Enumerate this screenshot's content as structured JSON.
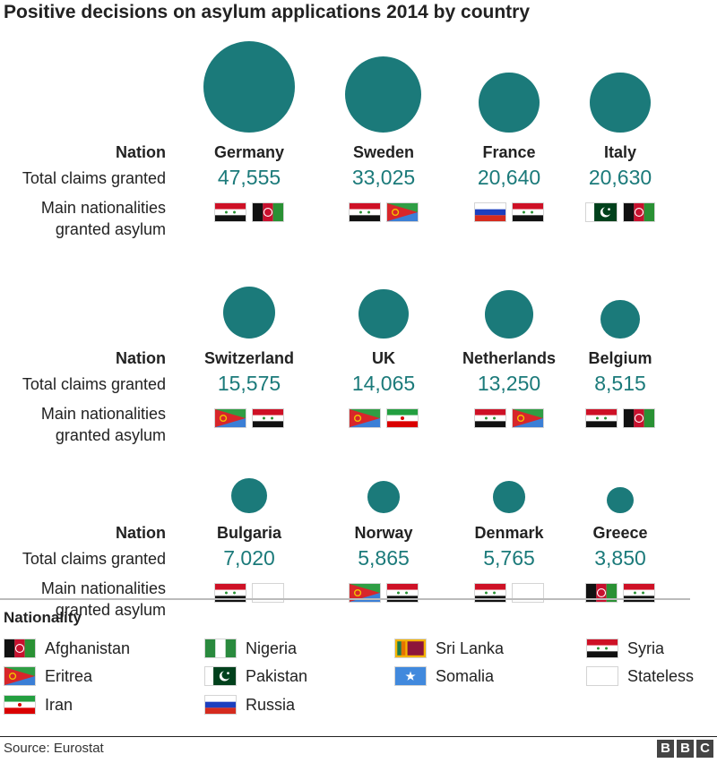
{
  "title": "Positive decisions on asylum applications 2014 by country",
  "row_labels": {
    "nation": "Nation",
    "total": "Total claims granted",
    "nationalities_line1": "Main nationalities",
    "nationalities_line2": "granted asylum"
  },
  "chart_data": {
    "type": "bubble",
    "title": "Positive decisions on asylum applications 2014 by country",
    "color": "#1b7a7a",
    "countries": [
      {
        "name": "Germany",
        "total": 47555,
        "total_label": "47,555",
        "nationalities": [
          "syria",
          "afghanistan"
        ]
      },
      {
        "name": "Sweden",
        "total": 33025,
        "total_label": "33,025",
        "nationalities": [
          "syria",
          "eritrea"
        ]
      },
      {
        "name": "France",
        "total": 20640,
        "total_label": "20,640",
        "nationalities": [
          "russia",
          "syria"
        ]
      },
      {
        "name": "Italy",
        "total": 20630,
        "total_label": "20,630",
        "nationalities": [
          "pakistan",
          "afghanistan"
        ]
      },
      {
        "name": "Switzerland",
        "total": 15575,
        "total_label": "15,575",
        "nationalities": [
          "eritrea",
          "syria"
        ]
      },
      {
        "name": "UK",
        "total": 14065,
        "total_label": "14,065",
        "nationalities": [
          "eritrea",
          "iran"
        ]
      },
      {
        "name": "Netherlands",
        "total": 13250,
        "total_label": "13,250",
        "nationalities": [
          "syria",
          "eritrea"
        ]
      },
      {
        "name": "Belgium",
        "total": 8515,
        "total_label": "8,515",
        "nationalities": [
          "syria",
          "afghanistan"
        ]
      },
      {
        "name": "Bulgaria",
        "total": 7020,
        "total_label": "7,020",
        "nationalities": [
          "syria",
          "stateless"
        ]
      },
      {
        "name": "Norway",
        "total": 5865,
        "total_label": "5,865",
        "nationalities": [
          "eritrea",
          "syria"
        ]
      },
      {
        "name": "Denmark",
        "total": 5765,
        "total_label": "5,765",
        "nationalities": [
          "syria",
          "stateless"
        ]
      },
      {
        "name": "Greece",
        "total": 3850,
        "total_label": "3,850",
        "nationalities": [
          "afghanistan",
          "syria"
        ]
      }
    ]
  },
  "legend": {
    "title": "Nationality",
    "items": [
      {
        "key": "afghanistan",
        "label": "Afghanistan"
      },
      {
        "key": "eritrea",
        "label": "Eritrea"
      },
      {
        "key": "iran",
        "label": "Iran"
      },
      {
        "key": "nigeria",
        "label": "Nigeria"
      },
      {
        "key": "pakistan",
        "label": "Pakistan"
      },
      {
        "key": "russia",
        "label": "Russia"
      },
      {
        "key": "srilanka",
        "label": "Sri Lanka"
      },
      {
        "key": "somalia",
        "label": "Somalia"
      },
      {
        "key": "syria",
        "label": "Syria"
      },
      {
        "key": "stateless",
        "label": "Stateless"
      }
    ]
  },
  "footer": {
    "source": "Source: Eurostat",
    "logo_letters": [
      "B",
      "B",
      "C"
    ]
  }
}
